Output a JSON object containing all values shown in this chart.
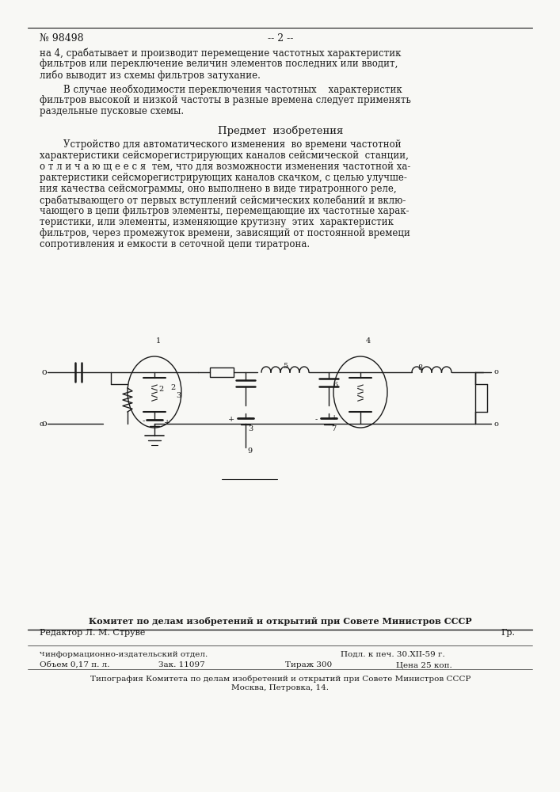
{
  "bg_color": "#f8f8f5",
  "text_color": "#1a1a1a",
  "page_number": "-- 2 --",
  "patent_number": "№ 98498",
  "header_text_1": "на 4, срабатывает и производит перемещение частотных характеристик",
  "header_text_2": "фильтров или переключение величин элементов последних или вводит,",
  "header_text_3": "либо выводит из схемы фильтров затухание.",
  "para2_indent": "        В случае необходимости переключения частотных    характеристик",
  "para2_text_2": "фильтров высокой и низкой частоты в разные времена следует применять",
  "para2_text_3": "раздельные пусковые схемы.",
  "section_title": "Предмет  изобретения",
  "claim_line_1": "        Устройство для автоматического изменения  во времени частотной",
  "claim_line_2": "характеристики сейсморегистрирующих каналов сейсмической  станции,",
  "claim_line_3": "о т л и ч а ю щ е е с я  тем, что для возможности изменения частотной ха-",
  "claim_line_4": "рактеристики сейсморегистрирующих каналов скачком, с целью улучше-",
  "claim_line_5": "ния качества сейсмограммы, оно выполнено в виде тиратронного реле,",
  "claim_line_6": "срабатывающего от первых вступлений сейсмических колебаний и вклю-",
  "claim_line_7": "чающего в цепи фильтров элементы, перемещающие их частотные харак-",
  "claim_line_8": "теристики, или элементы, изменяющие крутизну  этих  характеристик",
  "claim_line_9": "фильтров, через промежуток времени, зависящий от постоянной времеци",
  "claim_line_10": "сопротивления и емкости в сеточной цепи тиратрона.",
  "footer_committee": "Комитет по делам изобретений и открытий при Совете Министров СССР",
  "footer_editor": "Редактор Л. М. Струве",
  "footer_gr": "Гр.",
  "footer_info_superscript": "Ч",
  "footer_info": "информационно-издательский отдел.",
  "footer_sign": "Подл. к печ. 30.XII-59 г.",
  "footer_volume": "Объем 0,17 п. л.",
  "footer_order": "Зак. 11097",
  "footer_tirazh": "Тираж 300",
  "footer_price": "Цена 25 коп.",
  "footer_tipografia": "Типография Комитета по делам изобретений и открытий при Совете Министров СССР",
  "footer_address": "Москва, Петровка, 14."
}
